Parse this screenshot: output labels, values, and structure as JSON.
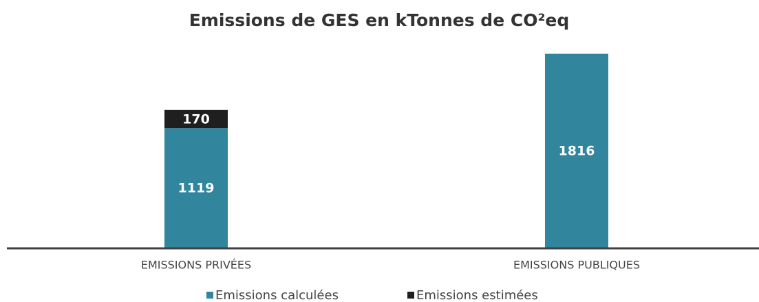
{
  "chart_data": {
    "type": "stacked_bar",
    "title": "Emissions de GES en kTonnes de CO²eq",
    "categories": [
      "EMISSIONS PRIVÉES",
      "EMISSIONS PUBLIQUES"
    ],
    "series": [
      {
        "name": "Emissions calculées",
        "color": "#31859c",
        "values": [
          1119,
          1816
        ]
      },
      {
        "name": "Emissions estimées",
        "color": "#1f1f1f",
        "values": [
          170,
          null
        ]
      }
    ]
  }
}
